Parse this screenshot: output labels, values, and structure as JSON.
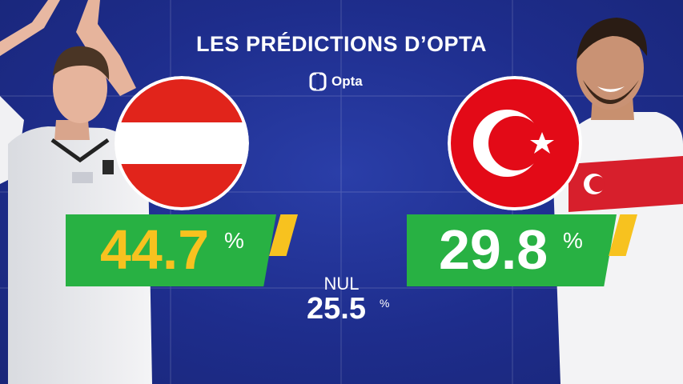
{
  "header": {
    "title": "LES PRÉDICTIONS D’OPTA",
    "brand": "Opta"
  },
  "teams": {
    "left": {
      "flag": "austria-flag",
      "value": "44.7",
      "percent_sign": "%",
      "value_color": "#f7c21f"
    },
    "right": {
      "flag": "turkey-flag",
      "value": "29.8",
      "percent_sign": "%",
      "value_color": "#ffffff"
    }
  },
  "draw": {
    "label": "NUL",
    "value": "25.5",
    "percent_sign": "%"
  },
  "colors": {
    "background": "#1f2f8f",
    "box": "#28b143",
    "accent": "#f7c21f",
    "austria_red": "#e1241b",
    "turkey_red": "#e30a17"
  }
}
